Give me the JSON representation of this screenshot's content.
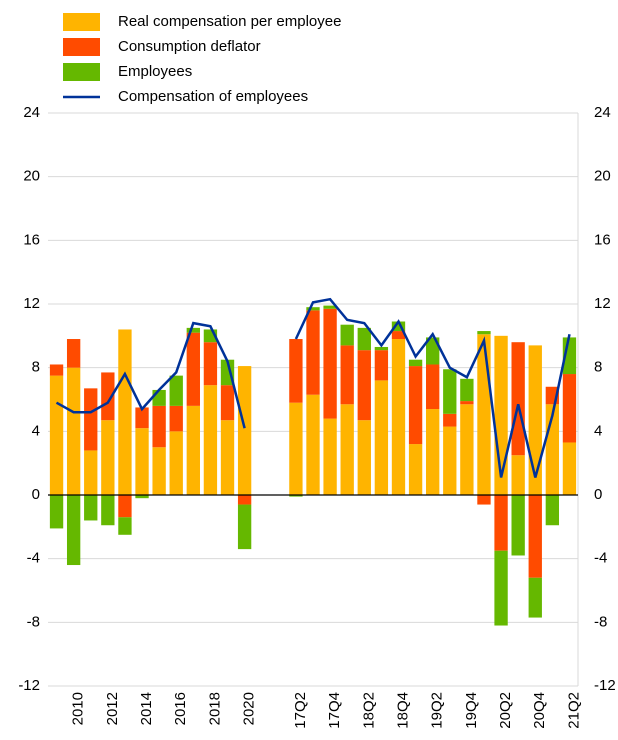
{
  "chart_data": {
    "type": "bar",
    "categories": [
      null,
      "2010",
      null,
      "2012",
      null,
      "2014",
      null,
      "2016",
      null,
      "2018",
      null,
      "2020",
      null,
      null,
      "17Q2",
      null,
      "17Q4",
      null,
      "18Q2",
      null,
      "18Q4",
      null,
      "19Q2",
      null,
      "19Q4",
      null,
      "20Q2",
      null,
      "20Q4",
      null,
      "21Q2"
    ],
    "series": [
      {
        "name": "Real compensation per employee",
        "color": "#ffb400",
        "values": [
          7.5,
          8.0,
          2.8,
          4.7,
          10.4,
          4.2,
          3.0,
          4.0,
          5.6,
          6.9,
          4.7,
          8.1,
          null,
          null,
          5.8,
          6.3,
          4.8,
          5.7,
          4.7,
          7.2,
          9.8,
          3.2,
          5.4,
          4.3,
          5.7,
          10.1,
          10.0,
          2.5,
          9.4,
          5.7,
          3.3
        ]
      },
      {
        "name": "Consumption deflator",
        "color": "#ff4b00",
        "values": [
          0.7,
          1.8,
          3.9,
          3.0,
          -1.4,
          1.3,
          2.6,
          1.6,
          4.6,
          2.7,
          2.2,
          -0.6,
          null,
          null,
          4.0,
          5.3,
          6.9,
          3.7,
          4.4,
          1.9,
          0.5,
          4.9,
          2.8,
          0.8,
          0.2,
          -0.6,
          -3.5,
          7.1,
          -5.2,
          1.1,
          4.3
        ]
      },
      {
        "name": "Employees",
        "color": "#65b800",
        "values": [
          -2.1,
          -4.4,
          -1.6,
          -1.9,
          -1.1,
          -0.2,
          1.0,
          1.9,
          0.3,
          0.8,
          1.6,
          -2.8,
          null,
          null,
          -0.1,
          0.2,
          0.2,
          1.3,
          1.4,
          0.2,
          0.6,
          0.4,
          1.7,
          2.8,
          1.4,
          0.2,
          -4.7,
          -3.8,
          -2.5,
          -1.9,
          2.3
        ]
      },
      {
        "name": "Compensation of employees",
        "color": "#003299",
        "kind": "line",
        "values": [
          5.8,
          5.2,
          5.2,
          5.8,
          7.6,
          5.4,
          6.6,
          7.7,
          10.8,
          10.6,
          8.4,
          4.2,
          null,
          null,
          9.8,
          12.1,
          12.3,
          11.0,
          10.8,
          9.4,
          10.9,
          8.7,
          10.1,
          8.0,
          7.4,
          9.7,
          1.1,
          5.7,
          1.1,
          5.0,
          10.1
        ]
      }
    ],
    "ylim": [
      -12,
      24
    ],
    "yticks": [
      -12,
      -8,
      -4,
      0,
      4,
      8,
      12,
      16,
      20,
      24
    ],
    "grid": true,
    "legend": "top-left"
  }
}
